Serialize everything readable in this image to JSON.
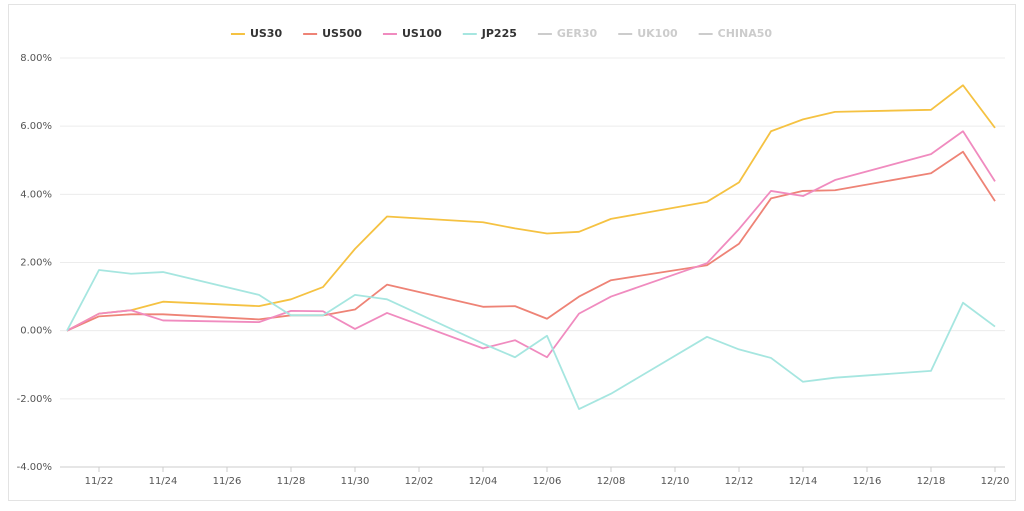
{
  "chart_data": {
    "type": "line",
    "x": [
      "11/21",
      "11/22",
      "11/23",
      "11/24",
      "11/27",
      "11/28",
      "11/29",
      "11/30",
      "12/01",
      "12/04",
      "12/05",
      "12/06",
      "12/07",
      "12/08",
      "12/11",
      "12/12",
      "12/13",
      "12/14",
      "12/15",
      "12/18",
      "12/19",
      "12/20"
    ],
    "series": [
      {
        "name": "US30",
        "color": "#f5c242",
        "values": [
          0,
          0.5,
          0.6,
          0.85,
          0.72,
          0.92,
          1.28,
          2.4,
          3.35,
          3.18,
          3.0,
          2.85,
          2.9,
          3.28,
          3.78,
          4.35,
          5.85,
          6.2,
          6.42,
          6.48,
          7.2,
          5.95
        ]
      },
      {
        "name": "US500",
        "color": "#ee8376",
        "values": [
          0,
          0.42,
          0.48,
          0.48,
          0.33,
          0.45,
          0.45,
          0.62,
          1.35,
          0.7,
          0.72,
          0.35,
          1.0,
          1.48,
          1.92,
          2.55,
          3.88,
          4.1,
          4.12,
          4.62,
          5.25,
          3.8
        ]
      },
      {
        "name": "US100",
        "color": "#f08bbf",
        "values": [
          0,
          0.5,
          0.6,
          0.3,
          0.25,
          0.58,
          0.57,
          0.05,
          0.52,
          -0.52,
          -0.28,
          -0.78,
          0.5,
          1.0,
          1.98,
          2.98,
          4.1,
          3.95,
          4.42,
          5.18,
          5.85,
          4.38
        ]
      },
      {
        "name": "JP225",
        "color": "#a6e6e0",
        "values": [
          0,
          1.78,
          1.67,
          1.72,
          1.05,
          0.45,
          0.45,
          1.05,
          0.92,
          -0.38,
          -0.78,
          -0.15,
          -2.3,
          -1.85,
          -0.18,
          -0.55,
          -0.8,
          -1.5,
          -1.38,
          -1.18,
          0.82,
          0.12
        ]
      },
      {
        "name": "GER30",
        "color": "#cccccc",
        "hidden": true
      },
      {
        "name": "UK100",
        "color": "#cccccc",
        "hidden": true
      },
      {
        "name": "CHINA50",
        "color": "#cccccc",
        "hidden": true
      }
    ],
    "xlim": [
      "11/21",
      "12/20"
    ],
    "xticks": [
      "11/22",
      "11/24",
      "11/26",
      "11/28",
      "11/30",
      "12/02",
      "12/04",
      "12/06",
      "12/08",
      "12/10",
      "12/12",
      "12/14",
      "12/16",
      "12/18",
      "12/20"
    ],
    "ylim": [
      -4,
      8
    ],
    "yticks": [
      {
        "value": -4,
        "label": "-4.00%"
      },
      {
        "value": -2,
        "label": "-2.00%"
      },
      {
        "value": 0,
        "label": "0.00%"
      },
      {
        "value": 2,
        "label": "2.00%"
      },
      {
        "value": 4,
        "label": "4.00%"
      },
      {
        "value": 6,
        "label": "6.00%"
      },
      {
        "value": 8,
        "label": "8.00%"
      }
    ],
    "grid": true,
    "legend": "top"
  }
}
